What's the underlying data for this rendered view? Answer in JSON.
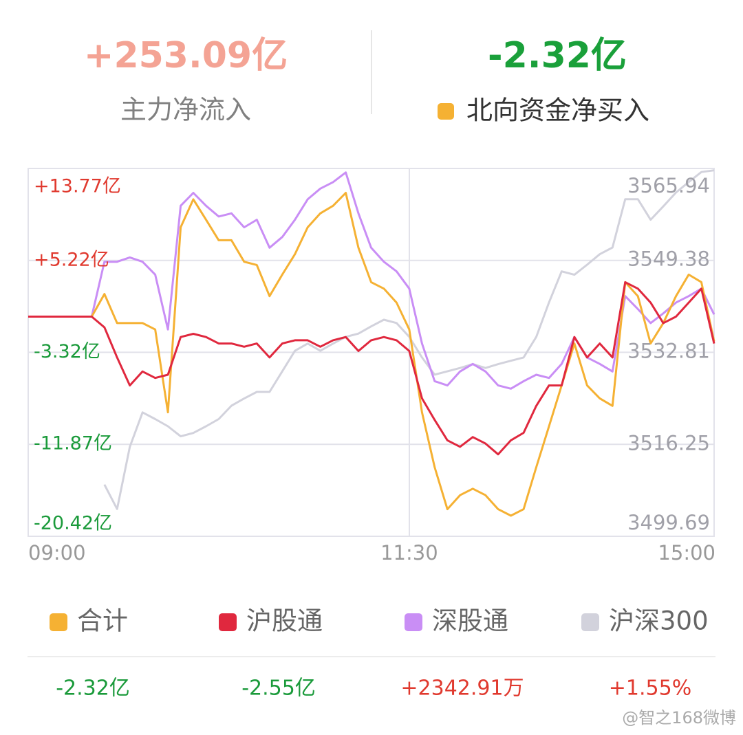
{
  "header": {
    "main_value": "+253.09亿",
    "main_label": "主力净流入",
    "north_value": "-2.32亿",
    "north_label": "北向资金净买入"
  },
  "chart_data": {
    "type": "line",
    "categories": [
      "09:00",
      null,
      null,
      null,
      null,
      null,
      null,
      null,
      null,
      null,
      null,
      null,
      null,
      null,
      null,
      null,
      null,
      null,
      null,
      null,
      null,
      null,
      null,
      null,
      null,
      null,
      null,
      null,
      null,
      null,
      "11:30",
      null,
      null,
      null,
      null,
      null,
      null,
      null,
      null,
      null,
      null,
      null,
      null,
      null,
      null,
      null,
      null,
      null,
      null,
      null,
      null,
      null,
      null,
      null,
      "15:00"
    ],
    "ylim": [
      -20.42,
      13.77
    ],
    "yticks": [
      {
        "value": 13.77,
        "label": "+13.77亿"
      },
      {
        "value": 5.22,
        "label": "+5.22亿"
      },
      {
        "value": -3.32,
        "label": "-3.32亿"
      },
      {
        "value": -11.87,
        "label": "-11.87亿"
      },
      {
        "value": -20.42,
        "label": "-20.42亿"
      }
    ],
    "y2lim": [
      3499.69,
      3565.94
    ],
    "y2ticks": [
      3565.94,
      3549.38,
      3532.81,
      3516.25,
      3499.69
    ],
    "grid": true,
    "series": [
      {
        "name": "沪深300",
        "color": "#d2d2dc",
        "axis": "y2",
        "summary": "+1.55%",
        "values": [
          null,
          null,
          null,
          null,
          null,
          null,
          3509.0,
          3504.6,
          3515.8,
          3522.0,
          3520.8,
          3519.5,
          3517.7,
          3518.3,
          3519.5,
          3520.8,
          3523.2,
          3524.5,
          3525.7,
          3525.7,
          3529.4,
          3533.1,
          3534.4,
          3533.1,
          3534.4,
          3535.6,
          3536.2,
          3537.5,
          3538.7,
          3538.1,
          3535.6,
          3531.9,
          3528.8,
          3529.4,
          3530.0,
          3530.7,
          3530.0,
          3530.7,
          3531.3,
          3531.9,
          3535.6,
          3541.8,
          3547.4,
          3546.8,
          3548.6,
          3550.5,
          3551.7,
          3560.4,
          3560.4,
          3556.7,
          3559.1,
          3561.6,
          3563.5,
          3565.3,
          3565.6
        ]
      },
      {
        "name": "深股通",
        "color": "#c98ef5",
        "summary": "+2342.91万",
        "values": [
          0,
          0,
          0,
          0,
          0,
          0,
          5.1,
          5.1,
          5.5,
          5.1,
          3.9,
          -1.2,
          10.3,
          11.5,
          10.3,
          9.3,
          9.6,
          8.3,
          9.0,
          6.4,
          7.4,
          9.0,
          10.9,
          11.9,
          12.5,
          13.4,
          9.6,
          6.4,
          5.1,
          4.2,
          2.6,
          -2.5,
          -6.0,
          -6.4,
          -5.1,
          -4.4,
          -5.1,
          -6.4,
          -6.7,
          -6.0,
          -5.4,
          -5.7,
          -4.4,
          -1.9,
          -3.8,
          -4.4,
          -5.1,
          1.9,
          0.7,
          -0.6,
          0.3,
          1.3,
          1.9,
          2.6,
          0.2
        ]
      },
      {
        "name": "合计",
        "color": "#f5b133",
        "summary": "-2.32亿",
        "values": [
          0,
          0,
          0,
          0,
          0,
          0,
          2.1,
          -0.6,
          -0.6,
          -0.6,
          -1.2,
          -8.9,
          8.3,
          10.9,
          9.0,
          7.1,
          7.1,
          5.1,
          4.8,
          1.9,
          3.9,
          5.8,
          8.3,
          9.6,
          10.3,
          11.5,
          6.4,
          3.2,
          2.6,
          1.3,
          -1.2,
          -8.9,
          -14.0,
          -17.9,
          -16.6,
          -16.0,
          -16.6,
          -17.9,
          -18.5,
          -17.9,
          -14.0,
          -10.2,
          -6.4,
          -2.5,
          -6.4,
          -7.6,
          -8.3,
          3.2,
          1.9,
          -2.5,
          -0.6,
          1.9,
          3.9,
          3.2,
          -2.3
        ]
      },
      {
        "name": "沪股通",
        "color": "#e0283e",
        "summary": "-2.55亿",
        "values": [
          0,
          0,
          0,
          0,
          0,
          0,
          -1.0,
          -3.8,
          -6.4,
          -5.1,
          -5.7,
          -5.4,
          -1.9,
          -1.6,
          -1.9,
          -2.5,
          -2.5,
          -2.8,
          -2.5,
          -3.8,
          -2.5,
          -2.2,
          -2.2,
          -2.8,
          -2.2,
          -1.9,
          -3.2,
          -2.2,
          -1.9,
          -2.2,
          -3.2,
          -7.6,
          -9.6,
          -11.5,
          -12.1,
          -11.2,
          -11.8,
          -12.8,
          -11.5,
          -10.8,
          -8.3,
          -6.4,
          -6.4,
          -1.9,
          -3.8,
          -2.5,
          -3.8,
          3.2,
          2.6,
          1.3,
          -0.6,
          0,
          1.3,
          2.6,
          -2.5
        ]
      }
    ],
    "legend_order": [
      2,
      3,
      1,
      0
    ]
  },
  "watermark": "@智之168微博"
}
